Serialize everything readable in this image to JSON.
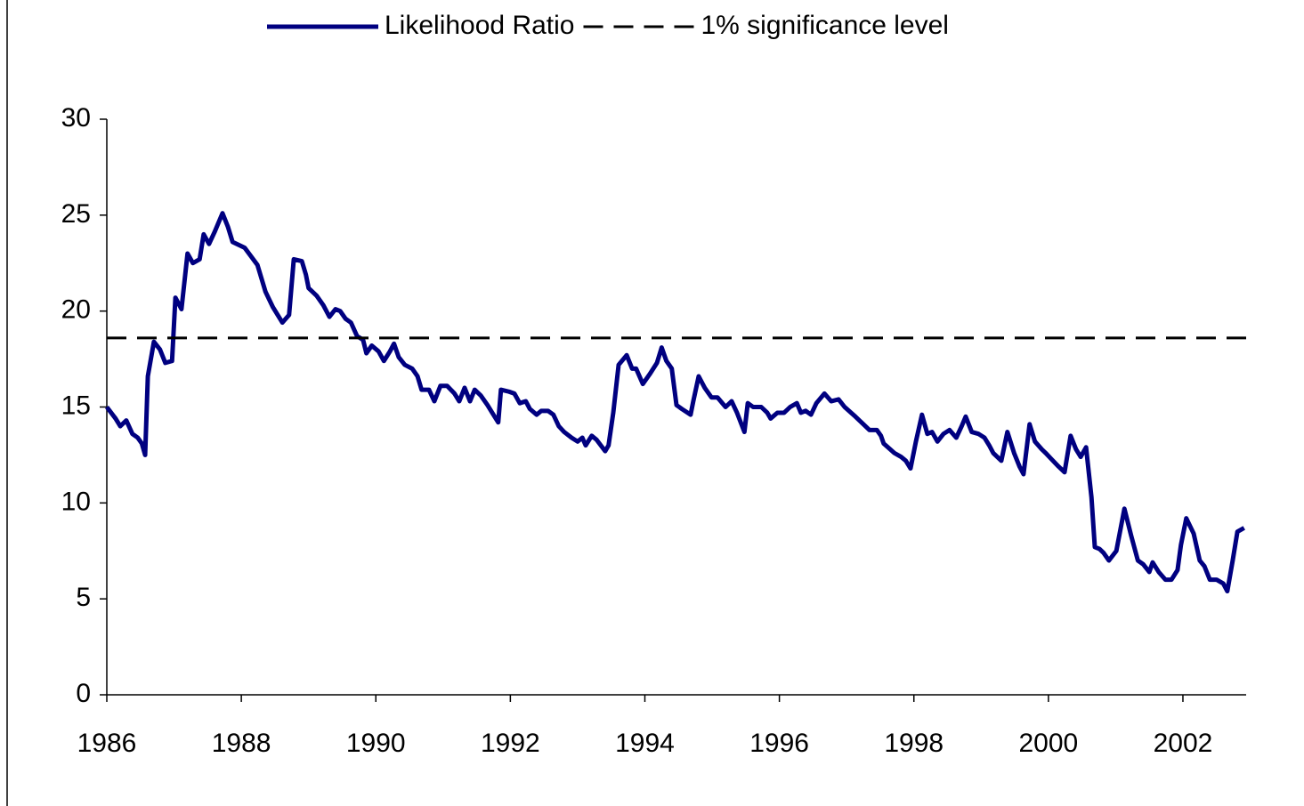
{
  "chart_data": {
    "type": "line",
    "xlim": [
      1986,
      2002.94
    ],
    "xticks": [
      1986,
      1988,
      1990,
      1992,
      1994,
      1996,
      1998,
      2000,
      2002
    ],
    "ylim": [
      0,
      30
    ],
    "yticks": [
      0,
      5,
      10,
      15,
      20,
      25,
      30
    ],
    "series": [
      {
        "name": "Likelihood Ratio",
        "color": "#000080",
        "dash": false,
        "x": [
          1986.0,
          1986.13,
          1986.2,
          1986.29,
          1986.38,
          1986.46,
          1986.52,
          1986.57,
          1986.61,
          1986.7,
          1986.79,
          1986.87,
          1986.97,
          1987.02,
          1987.11,
          1987.2,
          1987.28,
          1987.38,
          1987.44,
          1987.52,
          1987.6,
          1987.72,
          1987.8,
          1987.87,
          1988.05,
          1988.24,
          1988.36,
          1988.47,
          1988.61,
          1988.71,
          1988.78,
          1988.9,
          1988.96,
          1989.0,
          1989.12,
          1989.22,
          1989.31,
          1989.4,
          1989.47,
          1989.55,
          1989.63,
          1989.72,
          1989.81,
          1989.86,
          1989.94,
          1990.04,
          1990.12,
          1990.21,
          1990.27,
          1990.34,
          1990.43,
          1990.54,
          1990.62,
          1990.68,
          1990.79,
          1990.87,
          1990.96,
          1991.06,
          1991.17,
          1991.24,
          1991.32,
          1991.4,
          1991.47,
          1991.56,
          1991.66,
          1991.73,
          1991.82,
          1991.86,
          1991.98,
          1992.06,
          1992.14,
          1992.23,
          1992.29,
          1992.39,
          1992.46,
          1992.56,
          1992.64,
          1992.72,
          1992.8,
          1992.91,
          1993.0,
          1993.07,
          1993.12,
          1993.21,
          1993.28,
          1993.41,
          1993.46,
          1993.53,
          1993.61,
          1993.73,
          1993.81,
          1993.87,
          1993.97,
          1994.07,
          1994.18,
          1994.25,
          1994.32,
          1994.4,
          1994.47,
          1994.55,
          1994.68,
          1994.72,
          1994.8,
          1994.89,
          1994.99,
          1995.08,
          1995.2,
          1995.29,
          1995.37,
          1995.48,
          1995.53,
          1995.61,
          1995.73,
          1995.82,
          1995.87,
          1995.97,
          1996.07,
          1996.16,
          1996.26,
          1996.32,
          1996.39,
          1996.47,
          1996.55,
          1996.67,
          1996.77,
          1996.88,
          1996.97,
          1997.13,
          1997.25,
          1997.34,
          1997.45,
          1997.51,
          1997.55,
          1997.71,
          1997.81,
          1997.88,
          1997.95,
          1998.03,
          1998.12,
          1998.2,
          1998.27,
          1998.35,
          1998.44,
          1998.53,
          1998.63,
          1998.71,
          1998.77,
          1998.86,
          1998.96,
          1999.05,
          1999.12,
          1999.18,
          1999.3,
          1999.39,
          1999.49,
          1999.57,
          1999.63,
          1999.72,
          1999.8,
          1999.9,
          1999.96,
          2000.04,
          2000.15,
          2000.24,
          2000.33,
          2000.41,
          2000.48,
          2000.56,
          2000.64,
          2000.69,
          2000.76,
          2000.82,
          2000.9,
          2001.01,
          2001.13,
          2001.23,
          2001.33,
          2001.41,
          2001.5,
          2001.55,
          2001.64,
          2001.74,
          2001.83,
          2001.92,
          2001.97,
          2002.05,
          2002.16,
          2002.25,
          2002.32,
          2002.4,
          2002.5,
          2002.6,
          2002.66,
          2002.74,
          2002.81,
          2002.91
        ],
        "values": [
          15.0,
          14.4,
          14.0,
          14.3,
          13.6,
          13.4,
          13.1,
          12.5,
          16.6,
          18.4,
          18.0,
          17.3,
          17.4,
          20.7,
          20.1,
          23.0,
          22.5,
          22.7,
          24.0,
          23.5,
          24.1,
          25.1,
          24.4,
          23.6,
          23.3,
          22.4,
          21.0,
          20.2,
          19.4,
          19.8,
          22.7,
          22.6,
          21.9,
          21.2,
          20.8,
          20.3,
          19.7,
          20.1,
          20.0,
          19.6,
          19.4,
          18.7,
          18.5,
          17.8,
          18.2,
          17.9,
          17.4,
          17.9,
          18.3,
          17.6,
          17.2,
          17.0,
          16.6,
          15.9,
          15.9,
          15.3,
          16.1,
          16.1,
          15.7,
          15.3,
          16.0,
          15.3,
          15.9,
          15.6,
          15.1,
          14.7,
          14.2,
          15.9,
          15.8,
          15.7,
          15.2,
          15.3,
          14.9,
          14.6,
          14.8,
          14.8,
          14.6,
          14.0,
          13.7,
          13.4,
          13.2,
          13.4,
          13.0,
          13.5,
          13.3,
          12.7,
          13.0,
          14.7,
          17.2,
          17.7,
          17.0,
          17.0,
          16.2,
          16.7,
          17.3,
          18.1,
          17.4,
          17.0,
          15.1,
          14.9,
          14.6,
          15.3,
          16.6,
          16.0,
          15.5,
          15.5,
          15.0,
          15.3,
          14.7,
          13.7,
          15.2,
          15.0,
          15.0,
          14.7,
          14.4,
          14.7,
          14.7,
          15.0,
          15.2,
          14.7,
          14.8,
          14.6,
          15.2,
          15.7,
          15.3,
          15.4,
          15.0,
          14.5,
          14.1,
          13.8,
          13.8,
          13.5,
          13.1,
          12.6,
          12.4,
          12.2,
          11.8,
          13.2,
          14.6,
          13.6,
          13.7,
          13.2,
          13.6,
          13.8,
          13.4,
          14.0,
          14.5,
          13.7,
          13.6,
          13.4,
          13.0,
          12.6,
          12.2,
          13.7,
          12.6,
          11.9,
          11.5,
          14.1,
          13.2,
          12.8,
          12.6,
          12.3,
          11.9,
          11.6,
          13.5,
          12.8,
          12.4,
          12.9,
          10.3,
          7.7,
          7.6,
          7.4,
          7.0,
          7.5,
          9.7,
          8.3,
          7.0,
          6.8,
          6.4,
          6.9,
          6.4,
          6.0,
          6.0,
          6.5,
          7.8,
          9.2,
          8.4,
          7.0,
          6.7,
          6.0,
          6.0,
          5.8,
          5.4,
          7.0,
          8.5,
          8.7
        ]
      },
      {
        "name": "1% significance level",
        "color": "#000000",
        "dash": true,
        "x": [
          1986,
          2002.94
        ],
        "values": [
          18.6,
          18.6
        ]
      }
    ]
  }
}
